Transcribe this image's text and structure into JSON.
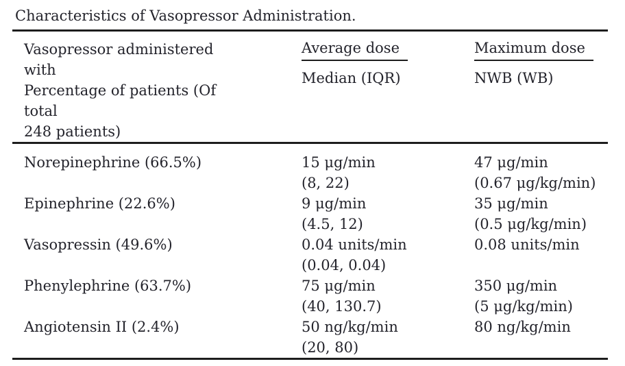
{
  "title": "Characteristics of Vasopressor Administration.",
  "colors": {
    "text": "#23232b",
    "rule": "#1d1d1d",
    "background": "#ffffff"
  },
  "table": {
    "header": {
      "col1_lines": [
        "Vasopressor administered",
        "with",
        "Percentage of patients (Of",
        "total",
        "248 patients)"
      ],
      "avg_group": "Average dose",
      "avg_sub": "Median (IQR)",
      "max_group": "Maximum dose",
      "max_sub": "NWB (WB)"
    },
    "rows": [
      {
        "drug": "Norepinephrine (66.5%)",
        "avg": [
          "15 μg/min",
          "(8, 22)"
        ],
        "max": [
          "47 μg/min",
          "(0.67 μg/kg/min)"
        ]
      },
      {
        "drug": "Epinephrine (22.6%)",
        "avg": [
          "9 μg/min",
          "(4.5, 12)"
        ],
        "max": [
          "35 μg/min",
          "(0.5 μg/kg/min)"
        ]
      },
      {
        "drug": "Vasopressin (49.6%)",
        "avg": [
          "0.04 units/min",
          "(0.04, 0.04)"
        ],
        "max": [
          "0.08 units/min"
        ]
      },
      {
        "drug": "Phenylephrine (63.7%)",
        "avg": [
          "75 μg/min",
          "(40, 130.7)"
        ],
        "max": [
          "350 μg/min",
          "(5 μg/kg/min)"
        ]
      },
      {
        "drug": "Angiotensin II (2.4%)",
        "avg": [
          "50 ng/kg/min",
          "(20, 80)"
        ],
        "max": [
          "80 ng/kg/min"
        ]
      }
    ]
  }
}
